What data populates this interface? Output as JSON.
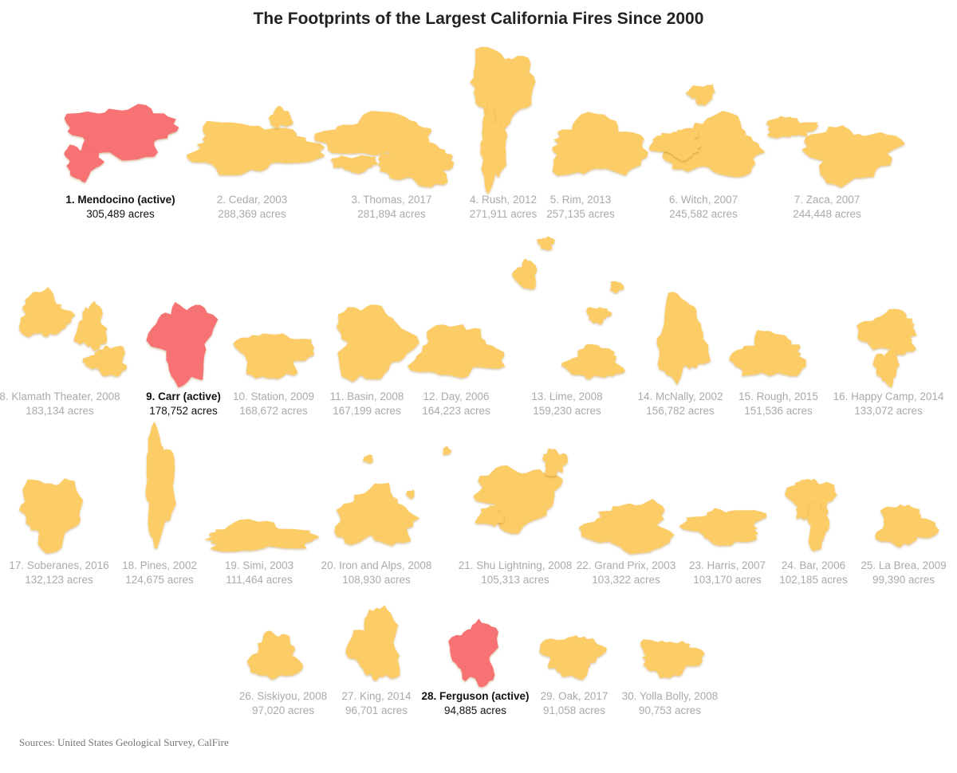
{
  "title": "The Footprints of the Largest California Fires Since 2000",
  "source": "Sources: United States Geological Survey, CalFire",
  "colors": {
    "active": "#f77272",
    "past": "#fccc66",
    "active_text": "#111111",
    "past_text": "#aaaaaa"
  },
  "chart_data": {
    "type": "table",
    "title": "The Footprints of the Largest California Fires Since 2000",
    "unit": "acres",
    "fires": [
      {
        "rank": 1,
        "name": "Mendocino",
        "year": null,
        "status": "active",
        "label": "1. Mendocino (active)",
        "acres": 305489,
        "acres_label": "305,489 acres"
      },
      {
        "rank": 2,
        "name": "Cedar",
        "year": 2003,
        "status": "past",
        "label": "2. Cedar, 2003",
        "acres": 288369,
        "acres_label": "288,369 acres"
      },
      {
        "rank": 3,
        "name": "Thomas",
        "year": 2017,
        "status": "past",
        "label": "3. Thomas, 2017",
        "acres": 281894,
        "acres_label": "281,894 acres"
      },
      {
        "rank": 4,
        "name": "Rush",
        "year": 2012,
        "status": "past",
        "label": "4. Rush, 2012",
        "acres": 271911,
        "acres_label": "271,911 acres"
      },
      {
        "rank": 5,
        "name": "Rim",
        "year": 2013,
        "status": "past",
        "label": "5. Rim, 2013",
        "acres": 257135,
        "acres_label": "257,135 acres"
      },
      {
        "rank": 6,
        "name": "Witch",
        "year": 2007,
        "status": "past",
        "label": "6. Witch, 2007",
        "acres": 245582,
        "acres_label": "245,582 acres"
      },
      {
        "rank": 7,
        "name": "Zaca",
        "year": 2007,
        "status": "past",
        "label": "7. Zaca, 2007",
        "acres": 244448,
        "acres_label": "244,448 acres"
      },
      {
        "rank": 8,
        "name": "Klamath Theater",
        "year": 2008,
        "status": "past",
        "label": "8. Klamath Theater, 2008",
        "acres": 183134,
        "acres_label": "183,134 acres"
      },
      {
        "rank": 9,
        "name": "Carr",
        "year": null,
        "status": "active",
        "label": "9. Carr (active)",
        "acres": 178752,
        "acres_label": "178,752 acres"
      },
      {
        "rank": 10,
        "name": "Station",
        "year": 2009,
        "status": "past",
        "label": "10. Station, 2009",
        "acres": 168672,
        "acres_label": "168,672 acres"
      },
      {
        "rank": 11,
        "name": "Basin",
        "year": 2008,
        "status": "past",
        "label": "11. Basin, 2008",
        "acres": 167199,
        "acres_label": "167,199 acres"
      },
      {
        "rank": 12,
        "name": "Day",
        "year": 2006,
        "status": "past",
        "label": "12. Day, 2006",
        "acres": 164223,
        "acres_label": "164,223 acres"
      },
      {
        "rank": 13,
        "name": "Lime",
        "year": 2008,
        "status": "past",
        "label": "13. Lime, 2008",
        "acres": 159230,
        "acres_label": "159,230 acres"
      },
      {
        "rank": 14,
        "name": "McNally",
        "year": 2002,
        "status": "past",
        "label": "14. McNally, 2002",
        "acres": 156782,
        "acres_label": "156,782 acres"
      },
      {
        "rank": 15,
        "name": "Rough",
        "year": 2015,
        "status": "past",
        "label": "15. Rough, 2015",
        "acres": 151536,
        "acres_label": "151,536 acres"
      },
      {
        "rank": 16,
        "name": "Happy Camp",
        "year": 2014,
        "status": "past",
        "label": "16. Happy Camp, 2014",
        "acres": 133072,
        "acres_label": "133,072 acres"
      },
      {
        "rank": 17,
        "name": "Soberanes",
        "year": 2016,
        "status": "past",
        "label": "17. Soberanes, 2016",
        "acres": 132123,
        "acres_label": "132,123 acres"
      },
      {
        "rank": 18,
        "name": "Pines",
        "year": 2002,
        "status": "past",
        "label": "18. Pines, 2002",
        "acres": 124675,
        "acres_label": "124,675 acres"
      },
      {
        "rank": 19,
        "name": "Simi",
        "year": 2003,
        "status": "past",
        "label": "19. Simi, 2003",
        "acres": 111464,
        "acres_label": "111,464 acres"
      },
      {
        "rank": 20,
        "name": "Iron and Alps",
        "year": 2008,
        "status": "past",
        "label": "20. Iron and Alps, 2008",
        "acres": 108930,
        "acres_label": "108,930 acres"
      },
      {
        "rank": 21,
        "name": "Shu Lightning",
        "year": 2008,
        "status": "past",
        "label": "21. Shu Lightning, 2008",
        "acres": 105313,
        "acres_label": "105,313 acres"
      },
      {
        "rank": 22,
        "name": "Grand Prix",
        "year": 2003,
        "status": "past",
        "label": "22. Grand Prix, 2003",
        "acres": 103322,
        "acres_label": "103,322 acres"
      },
      {
        "rank": 23,
        "name": "Harris",
        "year": 2007,
        "status": "past",
        "label": "23. Harris, 2007",
        "acres": 103170,
        "acres_label": "103,170 acres"
      },
      {
        "rank": 24,
        "name": "Bar",
        "year": 2006,
        "status": "past",
        "label": "24. Bar, 2006",
        "acres": 102185,
        "acres_label": "102,185 acres"
      },
      {
        "rank": 25,
        "name": "La Brea",
        "year": 2009,
        "status": "past",
        "label": "25. La Brea, 2009",
        "acres": 99390,
        "acres_label": "99,390 acres"
      },
      {
        "rank": 26,
        "name": "Siskiyou",
        "year": 2008,
        "status": "past",
        "label": "26. Siskiyou, 2008",
        "acres": 97020,
        "acres_label": "97,020 acres"
      },
      {
        "rank": 27,
        "name": "King",
        "year": 2014,
        "status": "past",
        "label": "27. King, 2014",
        "acres": 96701,
        "acres_label": "96,701 acres"
      },
      {
        "rank": 28,
        "name": "Ferguson",
        "year": null,
        "status": "active",
        "label": "28. Ferguson (active)",
        "acres": 94885,
        "acres_label": "94,885 acres"
      },
      {
        "rank": 29,
        "name": "Oak",
        "year": 2017,
        "status": "past",
        "label": "29. Oak, 2017",
        "acres": 91058,
        "acres_label": "91,058 acres"
      },
      {
        "rank": 30,
        "name": "Yolla Bolly",
        "year": 2008,
        "status": "past",
        "label": "30. Yolla Bolly, 2008",
        "acres": 90753,
        "acres_label": "90,753 acres"
      }
    ]
  }
}
